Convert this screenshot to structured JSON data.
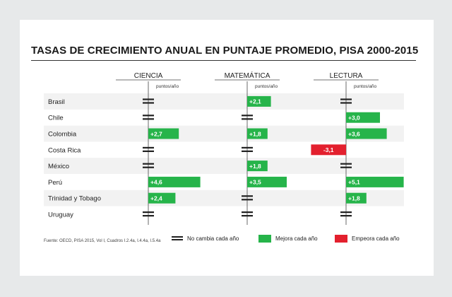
{
  "chart_data": {
    "type": "bar",
    "title": "TASAS DE CRECIMIENTO ANUAL EN PUNTAJE PROMEDIO, PISA 2000-2015",
    "unit": "puntos/año",
    "categories": [
      "Brasil",
      "Chile",
      "Colombia",
      "Costa Rica",
      "México",
      "Perú",
      "Trinidad y Tobago",
      "Uruguay"
    ],
    "panels": [
      {
        "name": "CIENCIA",
        "values": [
          null,
          null,
          2.7,
          null,
          null,
          4.6,
          2.4,
          null
        ],
        "labels": [
          "",
          "",
          "+2,7",
          "",
          "",
          "+4,6",
          "+2,4",
          ""
        ]
      },
      {
        "name": "MATEMÁTICA",
        "values": [
          2.1,
          null,
          1.8,
          null,
          1.8,
          3.5,
          null,
          null
        ],
        "labels": [
          "+2,1",
          "",
          "+1,8",
          "",
          "+1,8",
          "+3,5",
          "",
          ""
        ]
      },
      {
        "name": "LECTURA",
        "values": [
          null,
          3.0,
          3.6,
          -3.1,
          null,
          5.1,
          1.8,
          null
        ],
        "labels": [
          "",
          "+3,0",
          "+3,6",
          "-3,1",
          "",
          "+5,1",
          "+1,8",
          ""
        ]
      }
    ],
    "legend": [
      "No cambia cada año",
      "Mejora cada año",
      "Empeora cada año"
    ],
    "colors": {
      "improve": "#26b44a",
      "worsen": "#e3202e",
      "neutral": "#222222"
    },
    "source": "Fuente: OECD, PISA 2015, Vol I, Cuadros I.2.4a, I.4.4a, I.5.4a"
  }
}
